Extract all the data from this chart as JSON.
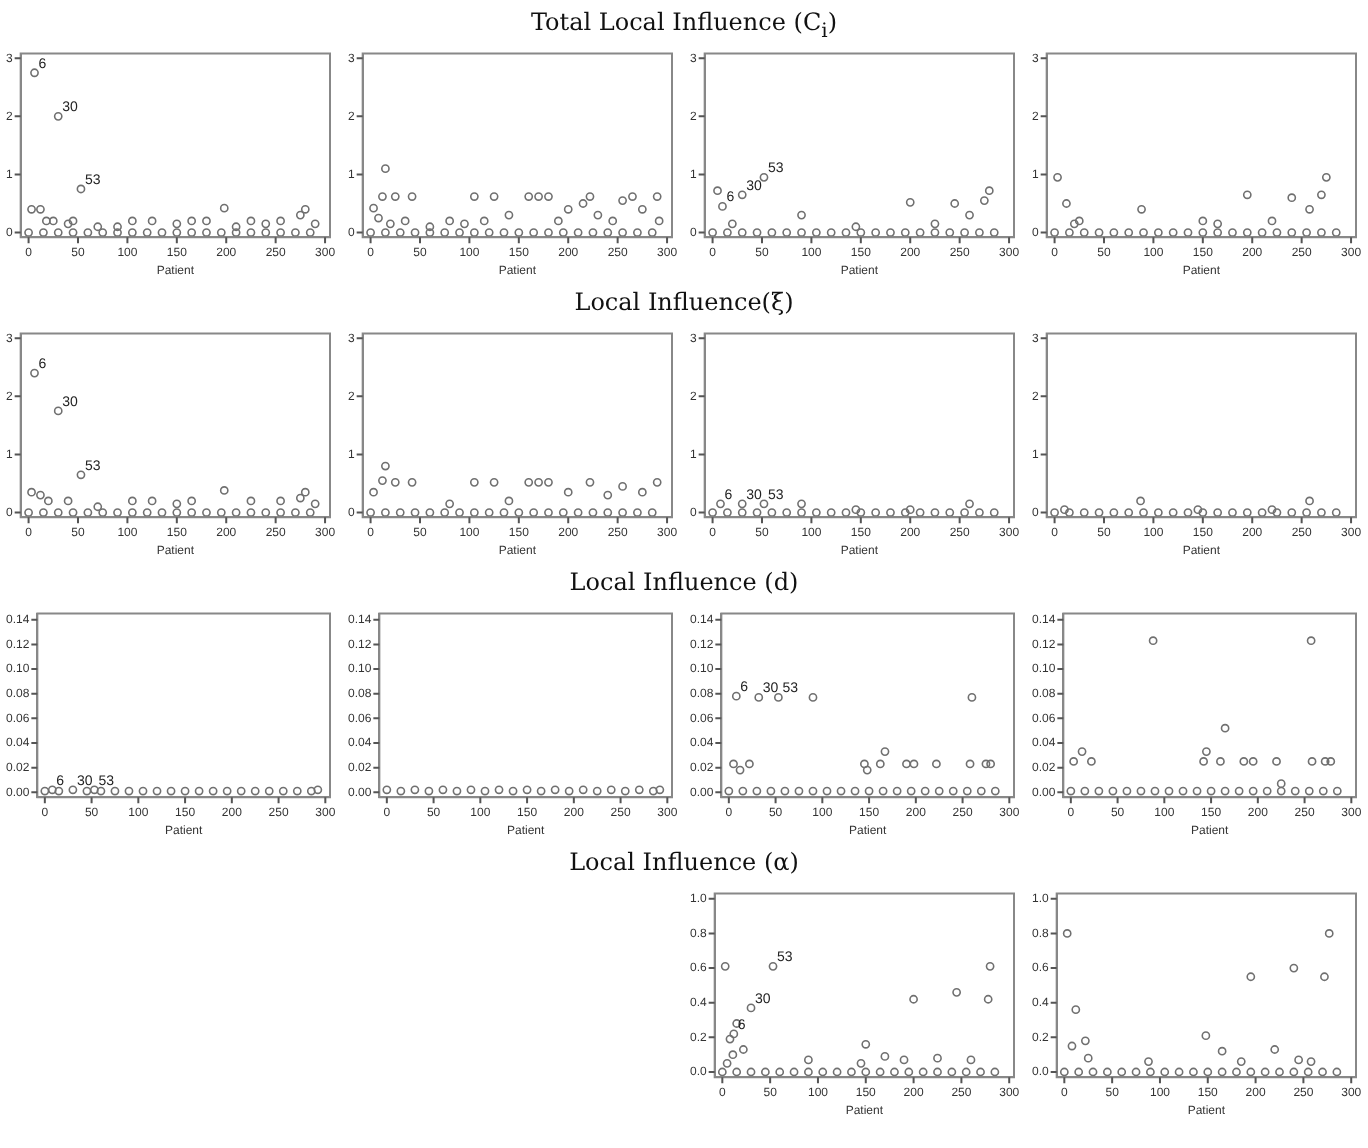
{
  "chart_data": [
    {
      "type": "scatter",
      "xlabel": "Patient",
      "xlim": [
        -8,
        305
      ],
      "xticks": [
        0,
        50,
        100,
        150,
        200,
        250,
        300
      ],
      "ylim": [
        -0.08,
        3.08
      ],
      "yticks": [
        0,
        1,
        2,
        3
      ],
      "grid": false,
      "legend": false,
      "marker": "circle",
      "series": [
        {
          "color": "#707070",
          "x": [
            6,
            30,
            53,
            3,
            12,
            18,
            25,
            40,
            45,
            70,
            90,
            105,
            125,
            150,
            165,
            180,
            198,
            210,
            225,
            240,
            255,
            275,
            280,
            290,
            0,
            15,
            30,
            45,
            60,
            75,
            90,
            105,
            120,
            135,
            150,
            165,
            180,
            195,
            210,
            225,
            240,
            255,
            270,
            285
          ],
          "values": [
            2.75,
            2.0,
            0.75,
            0.4,
            0.4,
            0.2,
            0.2,
            0.15,
            0.2,
            0.1,
            0.1,
            0.2,
            0.2,
            0.15,
            0.2,
            0.2,
            0.42,
            0.1,
            0.2,
            0.15,
            0.2,
            0.3,
            0.4,
            0.15,
            0,
            0,
            0,
            0,
            0,
            0,
            0,
            0,
            0,
            0,
            0,
            0,
            0,
            0,
            0,
            0,
            0,
            0,
            0,
            0
          ]
        }
      ],
      "annotations": [
        {
          "text": "6",
          "x": 6,
          "y": 2.75
        },
        {
          "text": "30",
          "x": 30,
          "y": 2.0
        },
        {
          "text": "53",
          "x": 53,
          "y": 0.75
        }
      ]
    },
    {
      "type": "scatter",
      "title": "Total Local Influence (C$_{i}$)",
      "xlabel": "Patient",
      "xlim": [
        -8,
        305
      ],
      "xticks": [
        0,
        50,
        100,
        150,
        200,
        250,
        300
      ],
      "ylim": [
        -0.08,
        3.08
      ],
      "yticks": [
        0,
        1,
        2,
        3
      ],
      "grid": false,
      "legend": false,
      "marker": "circle",
      "series": [
        {
          "color": "#707070",
          "x": [
            3,
            8,
            12,
            15,
            20,
            25,
            35,
            42,
            60,
            80,
            95,
            105,
            115,
            125,
            140,
            160,
            170,
            180,
            190,
            200,
            215,
            222,
            230,
            245,
            255,
            265,
            275,
            290,
            292,
            0,
            15,
            30,
            45,
            60,
            75,
            90,
            105,
            120,
            135,
            150,
            165,
            180,
            195,
            210,
            225,
            240,
            255,
            270,
            285
          ],
          "values": [
            0.42,
            0.25,
            0.62,
            1.1,
            0.15,
            0.62,
            0.2,
            0.62,
            0.1,
            0.2,
            0.15,
            0.62,
            0.2,
            0.62,
            0.3,
            0.62,
            0.62,
            0.62,
            0.2,
            0.4,
            0.5,
            0.62,
            0.3,
            0.2,
            0.55,
            0.62,
            0.4,
            0.62,
            0.2,
            0,
            0,
            0,
            0,
            0,
            0,
            0,
            0,
            0,
            0,
            0,
            0,
            0,
            0,
            0,
            0,
            0,
            0,
            0,
            0
          ]
        }
      ]
    },
    {
      "type": "scatter",
      "xlabel": "Patient",
      "xlim": [
        -8,
        305
      ],
      "xticks": [
        0,
        50,
        100,
        150,
        200,
        250,
        300
      ],
      "ylim": [
        -0.08,
        3.08
      ],
      "yticks": [
        0,
        1,
        2,
        3
      ],
      "grid": false,
      "legend": false,
      "marker": "circle",
      "series": [
        {
          "color": "#707070",
          "x": [
            10,
            30,
            52,
            5,
            20,
            90,
            145,
            200,
            225,
            245,
            260,
            275,
            280,
            0,
            15,
            30,
            45,
            60,
            75,
            90,
            105,
            120,
            135,
            150,
            165,
            180,
            195,
            210,
            225,
            240,
            255,
            270,
            285
          ],
          "values": [
            0.45,
            0.65,
            0.95,
            0.72,
            0.15,
            0.3,
            0.1,
            0.52,
            0.15,
            0.5,
            0.3,
            0.55,
            0.72,
            0,
            0,
            0,
            0,
            0,
            0,
            0,
            0,
            0,
            0,
            0,
            0,
            0,
            0,
            0,
            0,
            0,
            0,
            0,
            0
          ]
        }
      ],
      "annotations": [
        {
          "text": "6",
          "x": 10,
          "y": 0.45
        },
        {
          "text": "30",
          "x": 30,
          "y": 0.65
        },
        {
          "text": "53",
          "x": 52,
          "y": 0.95
        }
      ]
    },
    {
      "type": "scatter",
      "xlabel": "Patient",
      "xlim": [
        -8,
        305
      ],
      "xticks": [
        0,
        50,
        100,
        150,
        200,
        250,
        300
      ],
      "ylim": [
        -0.08,
        3.08
      ],
      "yticks": [
        0,
        1,
        2,
        3
      ],
      "grid": false,
      "legend": false,
      "marker": "circle",
      "series": [
        {
          "color": "#707070",
          "x": [
            3,
            12,
            20,
            25,
            88,
            150,
            165,
            195,
            220,
            240,
            258,
            270,
            275,
            0,
            15,
            30,
            45,
            60,
            75,
            90,
            105,
            120,
            135,
            150,
            165,
            180,
            195,
            210,
            225,
            240,
            255,
            270,
            285
          ],
          "values": [
            0.95,
            0.5,
            0.15,
            0.2,
            0.4,
            0.2,
            0.15,
            0.65,
            0.2,
            0.6,
            0.4,
            0.65,
            0.95,
            0,
            0,
            0,
            0,
            0,
            0,
            0,
            0,
            0,
            0,
            0,
            0,
            0,
            0,
            0,
            0,
            0,
            0,
            0,
            0
          ]
        }
      ]
    },
    {
      "type": "scatter",
      "xlabel": "Patient",
      "xlim": [
        -8,
        305
      ],
      "xticks": [
        0,
        50,
        100,
        150,
        200,
        250,
        300
      ],
      "ylim": [
        -0.08,
        3.08
      ],
      "yticks": [
        0,
        1,
        2,
        3
      ],
      "grid": false,
      "legend": false,
      "marker": "circle",
      "series": [
        {
          "color": "#707070",
          "x": [
            6,
            30,
            53,
            3,
            12,
            20,
            40,
            70,
            105,
            125,
            150,
            165,
            198,
            225,
            255,
            275,
            280,
            290,
            0,
            15,
            30,
            45,
            60,
            75,
            90,
            105,
            120,
            135,
            150,
            165,
            180,
            195,
            210,
            225,
            240,
            255,
            270,
            285
          ],
          "values": [
            2.4,
            1.75,
            0.65,
            0.35,
            0.3,
            0.2,
            0.2,
            0.1,
            0.2,
            0.2,
            0.15,
            0.2,
            0.38,
            0.2,
            0.2,
            0.25,
            0.35,
            0.15,
            0,
            0,
            0,
            0,
            0,
            0,
            0,
            0,
            0,
            0,
            0,
            0,
            0,
            0,
            0,
            0,
            0,
            0,
            0,
            0
          ]
        }
      ],
      "annotations": [
        {
          "text": "6",
          "x": 6,
          "y": 2.4
        },
        {
          "text": "30",
          "x": 30,
          "y": 1.75
        },
        {
          "text": "53",
          "x": 53,
          "y": 0.65
        }
      ]
    },
    {
      "type": "scatter",
      "title": "Local Influence(ξ)",
      "xlabel": "Patient",
      "xlim": [
        -8,
        305
      ],
      "xticks": [
        0,
        50,
        100,
        150,
        200,
        250,
        300
      ],
      "ylim": [
        -0.08,
        3.08
      ],
      "yticks": [
        0,
        1,
        2,
        3
      ],
      "grid": false,
      "legend": false,
      "marker": "circle",
      "series": [
        {
          "color": "#707070",
          "x": [
            3,
            12,
            15,
            25,
            42,
            80,
            105,
            125,
            140,
            160,
            170,
            180,
            200,
            222,
            240,
            255,
            275,
            290,
            0,
            15,
            30,
            45,
            60,
            75,
            90,
            105,
            120,
            135,
            150,
            165,
            180,
            195,
            210,
            225,
            240,
            255,
            270,
            285
          ],
          "values": [
            0.35,
            0.55,
            0.8,
            0.52,
            0.52,
            0.15,
            0.52,
            0.52,
            0.2,
            0.52,
            0.52,
            0.52,
            0.35,
            0.52,
            0.3,
            0.45,
            0.35,
            0.52,
            0,
            0,
            0,
            0,
            0,
            0,
            0,
            0,
            0,
            0,
            0,
            0,
            0,
            0,
            0,
            0,
            0,
            0,
            0,
            0
          ]
        }
      ]
    },
    {
      "type": "scatter",
      "xlabel": "Patient",
      "xlim": [
        -8,
        305
      ],
      "xticks": [
        0,
        50,
        100,
        150,
        200,
        250,
        300
      ],
      "ylim": [
        -0.08,
        3.08
      ],
      "yticks": [
        0,
        1,
        2,
        3
      ],
      "grid": false,
      "legend": false,
      "marker": "circle",
      "series": [
        {
          "color": "#707070",
          "x": [
            8,
            30,
            52,
            90,
            145,
            200,
            260,
            0,
            15,
            30,
            45,
            60,
            75,
            90,
            105,
            120,
            135,
            150,
            165,
            180,
            195,
            210,
            225,
            240,
            255,
            270,
            285
          ],
          "values": [
            0.15,
            0.15,
            0.15,
            0.15,
            0.05,
            0.05,
            0.15,
            0,
            0,
            0,
            0,
            0,
            0,
            0,
            0,
            0,
            0,
            0,
            0,
            0,
            0,
            0,
            0,
            0,
            0,
            0,
            0
          ]
        }
      ],
      "annotations": [
        {
          "text": "6",
          "x": 8,
          "y": 0.15
        },
        {
          "text": "30",
          "x": 30,
          "y": 0.15
        },
        {
          "text": "53",
          "x": 52,
          "y": 0.15
        }
      ]
    },
    {
      "type": "scatter",
      "xlabel": "Patient",
      "xlim": [
        -8,
        305
      ],
      "xticks": [
        0,
        50,
        100,
        150,
        200,
        250,
        300
      ],
      "ylim": [
        -0.08,
        3.08
      ],
      "yticks": [
        0,
        1,
        2,
        3
      ],
      "grid": false,
      "legend": false,
      "marker": "circle",
      "series": [
        {
          "color": "#707070",
          "x": [
            87,
            258,
            10,
            145,
            220,
            0,
            15,
            30,
            45,
            60,
            75,
            90,
            105,
            120,
            135,
            150,
            165,
            180,
            195,
            210,
            225,
            240,
            255,
            270,
            285
          ],
          "values": [
            0.2,
            0.2,
            0.05,
            0.05,
            0.05,
            0,
            0,
            0,
            0,
            0,
            0,
            0,
            0,
            0,
            0,
            0,
            0,
            0,
            0,
            0,
            0,
            0,
            0,
            0,
            0
          ]
        }
      ]
    },
    {
      "type": "scatter",
      "xlabel": "Patient",
      "xlim": [
        -8,
        305
      ],
      "xticks": [
        0,
        50,
        100,
        150,
        200,
        250,
        300
      ],
      "ylim": [
        -0.004,
        0.145
      ],
      "yticks": [
        {
          "value": 0,
          "label": "0.00"
        },
        {
          "value": 0.02,
          "label": "0.02"
        },
        {
          "value": 0.04,
          "label": "0.04"
        },
        {
          "value": 0.06,
          "label": "0.06"
        },
        {
          "value": 0.08,
          "label": "0.08"
        },
        {
          "value": 0.1,
          "label": "0.10"
        },
        {
          "value": 0.12,
          "label": "0.12"
        },
        {
          "value": 0.14,
          "label": "0.14"
        }
      ],
      "grid": false,
      "legend": false,
      "marker": "circle",
      "series": [
        {
          "color": "#707070",
          "x": [
            8,
            30,
            53,
            0,
            15,
            45,
            60,
            75,
            90,
            105,
            120,
            135,
            150,
            165,
            180,
            195,
            210,
            225,
            240,
            255,
            270,
            285,
            292
          ],
          "values": [
            0.002,
            0.002,
            0.002,
            0.001,
            0.001,
            0.001,
            0.001,
            0.001,
            0.001,
            0.001,
            0.001,
            0.001,
            0.001,
            0.001,
            0.001,
            0.001,
            0.001,
            0.001,
            0.001,
            0.001,
            0.001,
            0.001,
            0.002
          ]
        }
      ],
      "annotations": [
        {
          "text": "6",
          "x": 8,
          "y": 0.002
        },
        {
          "text": "30",
          "x": 30,
          "y": 0.002
        },
        {
          "text": "53",
          "x": 53,
          "y": 0.002
        }
      ]
    },
    {
      "type": "scatter",
      "xlabel": "Patient",
      "xlim": [
        -8,
        305
      ],
      "xticks": [
        0,
        50,
        100,
        150,
        200,
        250,
        300
      ],
      "ylim": [
        -0.004,
        0.145
      ],
      "yticks": [
        {
          "value": 0,
          "label": "0.00"
        },
        {
          "value": 0.02,
          "label": "0.02"
        },
        {
          "value": 0.04,
          "label": "0.04"
        },
        {
          "value": 0.06,
          "label": "0.06"
        },
        {
          "value": 0.08,
          "label": "0.08"
        },
        {
          "value": 0.1,
          "label": "0.10"
        },
        {
          "value": 0.12,
          "label": "0.12"
        },
        {
          "value": 0.14,
          "label": "0.14"
        }
      ],
      "grid": false,
      "legend": false,
      "title": "Local Influence (d)",
      "marker": "circle",
      "series": [
        {
          "color": "#707070",
          "x": [
            0,
            15,
            30,
            45,
            60,
            75,
            90,
            105,
            120,
            135,
            150,
            165,
            180,
            195,
            210,
            225,
            240,
            255,
            270,
            285,
            292
          ],
          "values": [
            0.002,
            0.001,
            0.002,
            0.001,
            0.002,
            0.001,
            0.002,
            0.001,
            0.002,
            0.001,
            0.002,
            0.001,
            0.002,
            0.001,
            0.002,
            0.001,
            0.002,
            0.001,
            0.002,
            0.001,
            0.002
          ]
        }
      ]
    },
    {
      "type": "scatter",
      "xlabel": "Patient",
      "xlim": [
        -8,
        305
      ],
      "xticks": [
        0,
        50,
        100,
        150,
        200,
        250,
        300
      ],
      "ylim": [
        -0.004,
        0.145
      ],
      "yticks": [
        {
          "value": 0,
          "label": "0.00"
        },
        {
          "value": 0.02,
          "label": "0.02"
        },
        {
          "value": 0.04,
          "label": "0.04"
        },
        {
          "value": 0.06,
          "label": "0.06"
        },
        {
          "value": 0.08,
          "label": "0.08"
        },
        {
          "value": 0.1,
          "label": "0.10"
        },
        {
          "value": 0.12,
          "label": "0.12"
        },
        {
          "value": 0.14,
          "label": "0.14"
        }
      ],
      "grid": false,
      "legend": false,
      "marker": "circle",
      "series": [
        {
          "color": "#707070",
          "x": [
            8,
            32,
            53,
            5,
            12,
            22,
            90,
            145,
            148,
            162,
            167,
            190,
            198,
            222,
            260,
            258,
            275,
            280,
            0,
            15,
            30,
            45,
            60,
            75,
            90,
            105,
            120,
            135,
            150,
            165,
            180,
            195,
            210,
            225,
            240,
            255,
            270,
            285
          ],
          "values": [
            0.078,
            0.077,
            0.077,
            0.023,
            0.018,
            0.023,
            0.077,
            0.023,
            0.018,
            0.023,
            0.033,
            0.023,
            0.023,
            0.023,
            0.077,
            0.023,
            0.023,
            0.023,
            0.001,
            0.001,
            0.001,
            0.001,
            0.001,
            0.001,
            0.001,
            0.001,
            0.001,
            0.001,
            0.001,
            0.001,
            0.001,
            0.001,
            0.001,
            0.001,
            0.001,
            0.001,
            0.001,
            0.001
          ]
        }
      ],
      "annotations": [
        {
          "text": "6",
          "x": 8,
          "y": 0.078
        },
        {
          "text": "30",
          "x": 32,
          "y": 0.077
        },
        {
          "text": "53",
          "x": 53,
          "y": 0.077
        }
      ]
    },
    {
      "type": "scatter",
      "xlabel": "Patient",
      "xlim": [
        -8,
        305
      ],
      "xticks": [
        0,
        50,
        100,
        150,
        200,
        250,
        300
      ],
      "ylim": [
        -0.004,
        0.145
      ],
      "yticks": [
        {
          "value": 0,
          "label": "0.00"
        },
        {
          "value": 0.02,
          "label": "0.02"
        },
        {
          "value": 0.04,
          "label": "0.04"
        },
        {
          "value": 0.06,
          "label": "0.06"
        },
        {
          "value": 0.08,
          "label": "0.08"
        },
        {
          "value": 0.1,
          "label": "0.10"
        },
        {
          "value": 0.12,
          "label": "0.12"
        },
        {
          "value": 0.14,
          "label": "0.14"
        }
      ],
      "grid": false,
      "legend": false,
      "marker": "circle",
      "series": [
        {
          "color": "#707070",
          "x": [
            3,
            12,
            22,
            88,
            142,
            145,
            160,
            165,
            185,
            195,
            220,
            225,
            257,
            258,
            272,
            278,
            0,
            15,
            30,
            45,
            60,
            75,
            90,
            105,
            120,
            135,
            150,
            165,
            180,
            195,
            210,
            225,
            240,
            255,
            270,
            285
          ],
          "values": [
            0.025,
            0.033,
            0.025,
            0.123,
            0.025,
            0.033,
            0.025,
            0.052,
            0.025,
            0.025,
            0.025,
            0.007,
            0.123,
            0.025,
            0.025,
            0.025,
            0.001,
            0.001,
            0.001,
            0.001,
            0.001,
            0.001,
            0.001,
            0.001,
            0.001,
            0.001,
            0.001,
            0.001,
            0.001,
            0.001,
            0.001,
            0.001,
            0.001,
            0.001,
            0.001,
            0.001
          ]
        }
      ]
    },
    {
      "type": "scatter",
      "title": "Local Influence (α)",
      "xlabel": "Patient",
      "xlim": [
        -8,
        305
      ],
      "xticks": [
        0,
        50,
        100,
        150,
        200,
        250,
        300
      ],
      "ylim": [
        -0.03,
        1.03
      ],
      "yticks": [
        {
          "value": 0,
          "label": "0.0"
        },
        {
          "value": 0.2,
          "label": "0.2"
        },
        {
          "value": 0.4,
          "label": "0.4"
        },
        {
          "value": 0.6,
          "label": "0.6"
        },
        {
          "value": 0.8,
          "label": "0.8"
        },
        {
          "value": 1,
          "label": "1.0"
        }
      ],
      "grid": false,
      "legend": false,
      "marker": "circle",
      "series": [
        {
          "color": "#707070",
          "x": [
            3,
            5,
            8,
            12,
            15,
            11,
            22,
            30,
            53,
            90,
            150,
            145,
            170,
            200,
            245,
            225,
            260,
            278,
            280,
            190,
            0,
            15,
            30,
            45,
            60,
            75,
            90,
            105,
            120,
            135,
            150,
            165,
            180,
            195,
            210,
            225,
            240,
            255,
            270,
            285
          ],
          "values": [
            0.61,
            0.05,
            0.19,
            0.22,
            0.28,
            0.1,
            0.13,
            0.37,
            0.61,
            0.07,
            0.16,
            0.05,
            0.09,
            0.42,
            0.46,
            0.08,
            0.07,
            0.42,
            0.61,
            0.07,
            0,
            0,
            0,
            0,
            0,
            0,
            0,
            0,
            0,
            0,
            0,
            0,
            0,
            0,
            0,
            0,
            0,
            0,
            0,
            0
          ]
        }
      ],
      "annotations": [
        {
          "text": "6",
          "x": 12,
          "y": 0.22
        },
        {
          "text": "30",
          "x": 30,
          "y": 0.37
        },
        {
          "text": "53",
          "x": 53,
          "y": 0.61
        }
      ]
    },
    {
      "type": "scatter",
      "xlabel": "Patient",
      "xlim": [
        -8,
        305
      ],
      "xticks": [
        0,
        50,
        100,
        150,
        200,
        250,
        300
      ],
      "ylim": [
        -0.03,
        1.03
      ],
      "yticks": [
        {
          "value": 0,
          "label": "0.0"
        },
        {
          "value": 0.2,
          "label": "0.2"
        },
        {
          "value": 0.4,
          "label": "0.4"
        },
        {
          "value": 0.6,
          "label": "0.6"
        },
        {
          "value": 0.8,
          "label": "0.8"
        },
        {
          "value": 1,
          "label": "1.0"
        }
      ],
      "grid": false,
      "legend": false,
      "marker": "circle",
      "series": [
        {
          "color": "#707070",
          "x": [
            3,
            8,
            12,
            22,
            25,
            88,
            148,
            165,
            185,
            195,
            220,
            240,
            245,
            258,
            272,
            277,
            0,
            15,
            30,
            45,
            60,
            75,
            90,
            105,
            120,
            135,
            150,
            165,
            180,
            195,
            210,
            225,
            240,
            255,
            270,
            285
          ],
          "values": [
            0.8,
            0.15,
            0.36,
            0.18,
            0.08,
            0.06,
            0.21,
            0.12,
            0.06,
            0.55,
            0.13,
            0.6,
            0.07,
            0.06,
            0.55,
            0.8,
            0,
            0,
            0,
            0,
            0,
            0,
            0,
            0,
            0,
            0,
            0,
            0,
            0,
            0,
            0,
            0,
            0,
            0,
            0,
            0
          ]
        }
      ]
    }
  ]
}
